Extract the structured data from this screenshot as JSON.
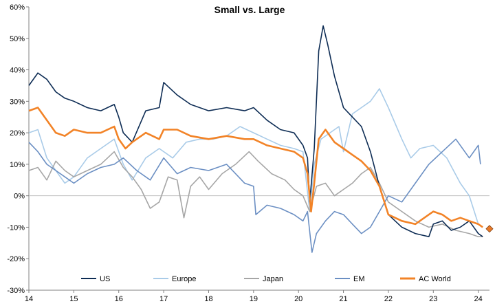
{
  "chart_data": {
    "type": "line",
    "title": "Small vs. Large",
    "xlabel": "",
    "ylabel": "",
    "x_ticks": [
      "14",
      "15",
      "16",
      "17",
      "18",
      "19",
      "20",
      "21",
      "22",
      "23",
      "24"
    ],
    "x_range": [
      2014.0,
      2024.25
    ],
    "ylim": [
      -30,
      60
    ],
    "y_ticks": [
      "60%",
      "50%",
      "40%",
      "30%",
      "20%",
      "10%",
      "0%",
      "-10%",
      "-20%",
      "-30%"
    ],
    "y_tick_values": [
      60,
      50,
      40,
      30,
      20,
      10,
      0,
      -10,
      -20,
      -30
    ],
    "legend_position": "bottom",
    "series": [
      {
        "name": "US",
        "color": "#0d2c54",
        "x": [
          2014.0,
          2014.2,
          2014.4,
          2014.6,
          2014.8,
          2015.0,
          2015.3,
          2015.6,
          2015.9,
          2016.0,
          2016.1,
          2016.3,
          2016.6,
          2016.9,
          2017.0,
          2017.3,
          2017.6,
          2018.0,
          2018.4,
          2018.8,
          2019.0,
          2019.3,
          2019.6,
          2019.9,
          2020.1,
          2020.2,
          2020.25,
          2020.35,
          2020.45,
          2020.55,
          2020.65,
          2020.8,
          2021.0,
          2021.2,
          2021.4,
          2021.6,
          2021.8,
          2022.0,
          2022.3,
          2022.6,
          2022.9,
          2023.0,
          2023.2,
          2023.4,
          2023.6,
          2023.8,
          2024.0,
          2024.1
        ],
        "values": [
          35,
          39,
          37,
          33,
          31,
          30,
          28,
          27,
          29,
          25,
          20,
          17,
          27,
          28,
          36,
          32,
          29,
          27,
          28,
          27,
          28,
          24,
          21,
          20,
          16,
          12,
          -2,
          15,
          46,
          54,
          48,
          38,
          28,
          25,
          22,
          14,
          3,
          -6,
          -10,
          -12,
          -13,
          -9,
          -8,
          -11,
          -10,
          -8,
          -12,
          -13
        ]
      },
      {
        "name": "Europe",
        "color": "#a9cbe8",
        "x": [
          2014.0,
          2014.2,
          2014.4,
          2014.6,
          2014.8,
          2015.0,
          2015.3,
          2015.6,
          2015.9,
          2016.1,
          2016.3,
          2016.6,
          2016.9,
          2017.2,
          2017.5,
          2017.8,
          2018.1,
          2018.4,
          2018.7,
          2019.0,
          2019.3,
          2019.6,
          2019.9,
          2020.1,
          2020.25,
          2020.35,
          2020.5,
          2020.7,
          2020.9,
          2021.0,
          2021.2,
          2021.4,
          2021.6,
          2021.8,
          2022.0,
          2022.3,
          2022.5,
          2022.7,
          2023.0,
          2023.3,
          2023.6,
          2023.8,
          2024.0,
          2024.1
        ],
        "values": [
          20,
          21,
          12,
          8,
          4,
          6,
          12,
          15,
          18,
          10,
          5,
          12,
          15,
          12,
          17,
          18,
          18,
          19,
          22,
          20,
          18,
          16,
          15,
          14,
          -5,
          10,
          18,
          20,
          22,
          14,
          26,
          28,
          30,
          34,
          28,
          18,
          12,
          15,
          16,
          12,
          4,
          0,
          -9,
          -10
        ]
      },
      {
        "name": "Japan",
        "color": "#a6a6a6",
        "x": [
          2014.0,
          2014.2,
          2014.4,
          2014.6,
          2014.8,
          2015.0,
          2015.3,
          2015.6,
          2015.9,
          2016.1,
          2016.3,
          2016.5,
          2016.7,
          2016.9,
          2017.1,
          2017.3,
          2017.45,
          2017.6,
          2017.8,
          2018.0,
          2018.3,
          2018.6,
          2018.9,
          2019.1,
          2019.4,
          2019.7,
          2019.9,
          2020.1,
          2020.25,
          2020.4,
          2020.6,
          2020.8,
          2021.0,
          2021.2,
          2021.4,
          2021.6,
          2021.8,
          2022.0,
          2022.3,
          2022.6,
          2022.9,
          2023.2,
          2023.5,
          2023.8,
          2024.0,
          2024.1
        ],
        "values": [
          8,
          9,
          5,
          11,
          8,
          6,
          8,
          10,
          14,
          9,
          6,
          2,
          -4,
          -2,
          6,
          5,
          -7,
          3,
          6,
          2,
          7,
          10,
          14,
          11,
          7,
          5,
          2,
          0,
          -5,
          3,
          4,
          0,
          2,
          4,
          7,
          9,
          4,
          -2,
          -5,
          -8,
          -10,
          -9,
          -11,
          -12,
          -13,
          -13
        ]
      },
      {
        "name": "EM",
        "color": "#6b8fc3",
        "x": [
          2014.0,
          2014.2,
          2014.4,
          2014.6,
          2014.8,
          2015.0,
          2015.3,
          2015.6,
          2015.9,
          2016.1,
          2016.4,
          2016.7,
          2017.0,
          2017.3,
          2017.6,
          2018.0,
          2018.4,
          2018.8,
          2019.0,
          2019.05,
          2019.3,
          2019.6,
          2019.9,
          2020.1,
          2020.2,
          2020.3,
          2020.4,
          2020.6,
          2020.8,
          2021.0,
          2021.2,
          2021.4,
          2021.6,
          2021.8,
          2022.0,
          2022.3,
          2022.6,
          2022.9,
          2023.2,
          2023.5,
          2023.8,
          2024.0,
          2024.05
        ],
        "values": [
          17,
          14,
          10,
          8,
          6,
          4,
          7,
          9,
          10,
          12,
          8,
          5,
          12,
          7,
          9,
          8,
          10,
          4,
          3,
          -6,
          -3,
          -4,
          -6,
          -8,
          -5,
          -18,
          -12,
          -8,
          -5,
          -6,
          -9,
          -12,
          -10,
          -5,
          0,
          -2,
          4,
          10,
          14,
          18,
          12,
          16,
          10
        ]
      },
      {
        "name": "AC World",
        "color": "#f28327",
        "x": [
          2014.0,
          2014.2,
          2014.4,
          2014.6,
          2014.8,
          2015.0,
          2015.3,
          2015.6,
          2015.9,
          2016.0,
          2016.15,
          2016.3,
          2016.6,
          2016.9,
          2017.0,
          2017.3,
          2017.6,
          2018.0,
          2018.4,
          2018.8,
          2019.0,
          2019.3,
          2019.6,
          2019.9,
          2020.1,
          2020.2,
          2020.28,
          2020.35,
          2020.45,
          2020.6,
          2020.8,
          2021.0,
          2021.2,
          2021.4,
          2021.6,
          2021.8,
          2022.0,
          2022.3,
          2022.6,
          2022.9,
          2023.0,
          2023.2,
          2023.4,
          2023.6,
          2023.8,
          2024.0,
          2024.1
        ],
        "values": [
          27,
          28,
          24,
          20,
          19,
          21,
          20,
          20,
          22,
          18,
          15,
          17,
          20,
          18,
          21,
          21,
          19,
          18,
          19,
          18,
          18,
          16,
          15,
          14,
          12,
          7,
          -5,
          4,
          18,
          21,
          17,
          15,
          13,
          11,
          8,
          3,
          -6,
          -8,
          -9,
          -6,
          -5,
          -6,
          -8,
          -7,
          -8,
          -9,
          -10
        ]
      }
    ],
    "end_marker": {
      "series": "AC World",
      "x": 2024.25,
      "value": -10.5,
      "color": "#e87a2a"
    }
  }
}
